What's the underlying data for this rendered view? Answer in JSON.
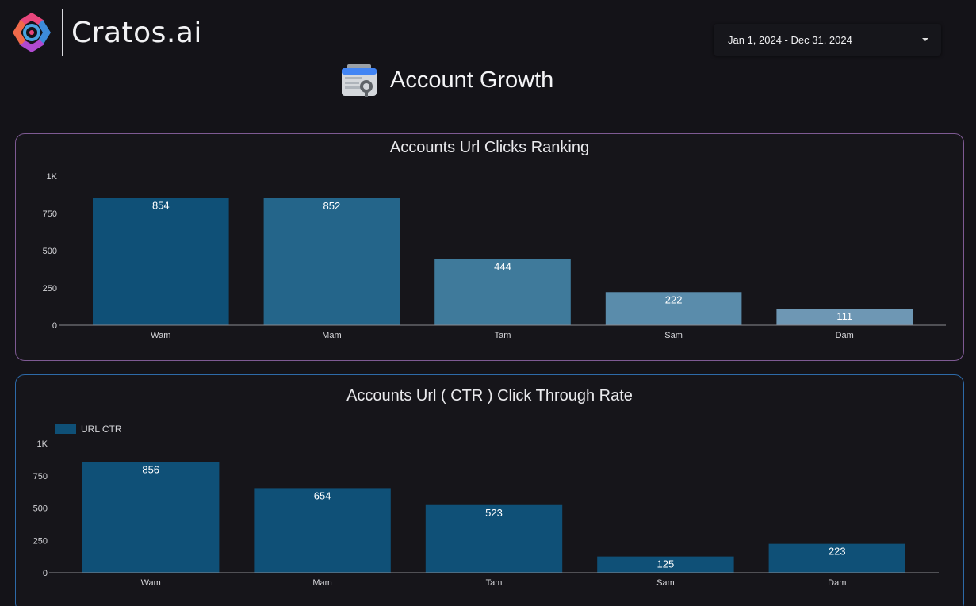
{
  "brand": {
    "name": "Cratos.ai"
  },
  "date_range": {
    "label": "Jan 1, 2024 - Dec 31, 2024"
  },
  "page": {
    "title": "Account Growth"
  },
  "chart_data": [
    {
      "type": "bar",
      "title": "Accounts Url Clicks Ranking",
      "categories": [
        "Wam",
        "Mam",
        "Tam",
        "Sam",
        "Dam"
      ],
      "values": [
        854,
        852,
        444,
        222,
        111
      ],
      "yticks": [
        "0",
        "250",
        "500",
        "750",
        "1K"
      ],
      "ylim": [
        0,
        1000
      ],
      "data_labels": true,
      "legend": null,
      "colors": [
        "#0f5077",
        "#24658a",
        "#3f7a9b",
        "#5a8cab",
        "#6e97b4"
      ]
    },
    {
      "type": "bar",
      "title": "Accounts Url ( CTR ) Click Through Rate",
      "categories": [
        "Wam",
        "Mam",
        "Tam",
        "Sam",
        "Dam"
      ],
      "series": [
        {
          "name": "URL CTR",
          "values": [
            856,
            654,
            523,
            125,
            223
          ]
        }
      ],
      "yticks": [
        "0",
        "250",
        "500",
        "750",
        "1K"
      ],
      "ylim": [
        0,
        1000
      ],
      "data_labels": true,
      "legend": "top-left",
      "colors": [
        "#0f5077"
      ]
    }
  ]
}
